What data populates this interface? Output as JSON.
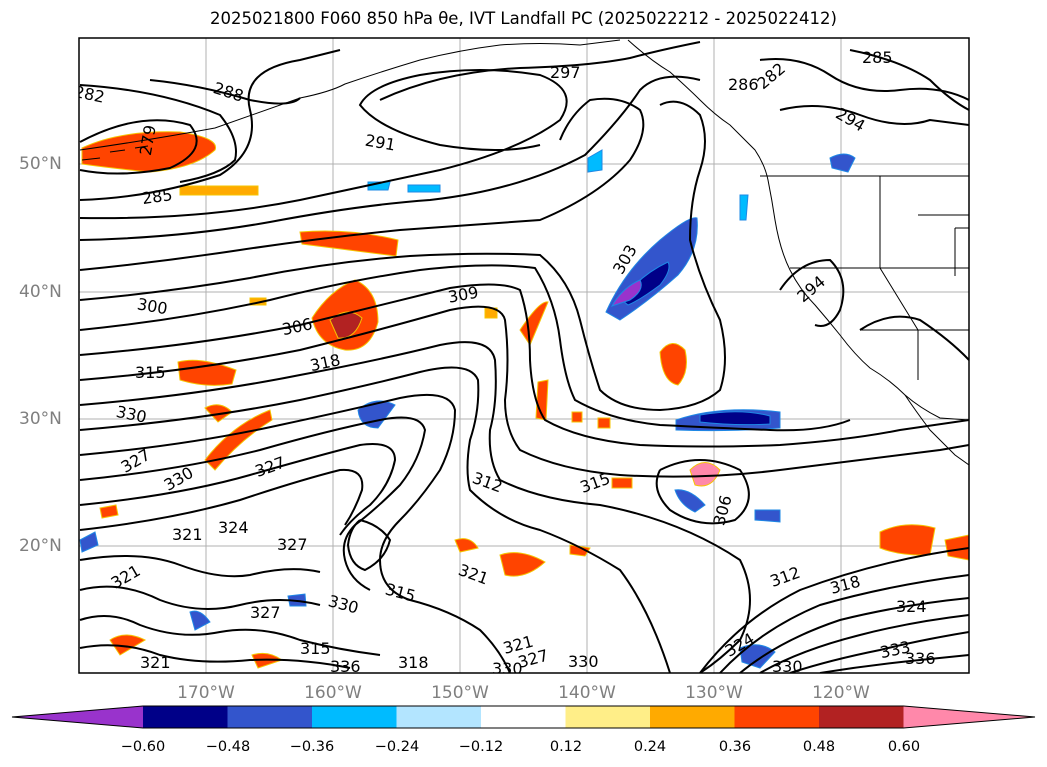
{
  "title": "2025021800 F060 850 hPa θe, IVT Landfall PC (2025022212 - 2025022412)",
  "map": {
    "lat_labels": [
      "50°N",
      "40°N",
      "30°N",
      "20°N"
    ],
    "lon_labels": [
      "170°W",
      "160°W",
      "150°W",
      "140°W",
      "130°W",
      "120°W"
    ],
    "contour_labels": [
      "282",
      "288",
      "297",
      "286",
      "282",
      "285",
      "291",
      "285",
      "303",
      "294",
      "300",
      "306",
      "309",
      "294",
      "318",
      "315",
      "330",
      "327",
      "330",
      "327",
      "312",
      "315",
      "306",
      "324",
      "321",
      "327",
      "321",
      "312",
      "318",
      "330",
      "315",
      "321",
      "327",
      "324",
      "315",
      "336",
      "318",
      "321",
      "327",
      "330",
      "330",
      "333",
      "336",
      "330",
      "279",
      "324",
      "321"
    ]
  },
  "colorbar": {
    "ticks": [
      "−0.60",
      "−0.48",
      "−0.36",
      "−0.24",
      "−0.12",
      "0.12",
      "0.24",
      "0.36",
      "0.48",
      "0.60"
    ],
    "colors": [
      "#9933cc",
      "#000088",
      "#3355cc",
      "#00bbff",
      "#b3e5ff",
      "#ffffff",
      "#ffee88",
      "#ffaa00",
      "#ff4400",
      "#b22222",
      "#ff88aa"
    ]
  }
}
